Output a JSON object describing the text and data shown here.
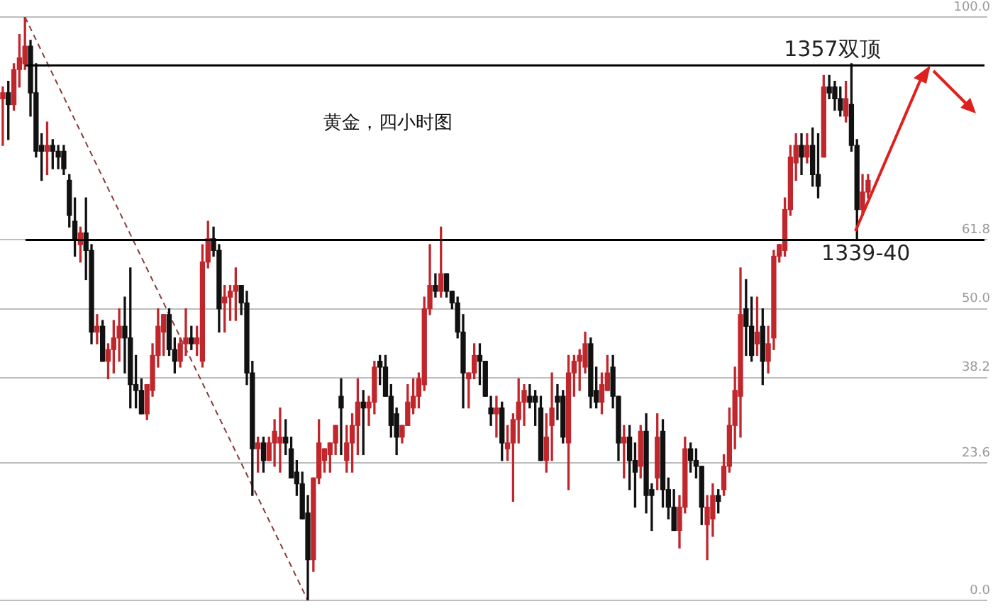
{
  "chart_data": {
    "type": "candlestick",
    "title": "黄金，四小时图",
    "categories": [
      null,
      null,
      null,
      null,
      null,
      null,
      null,
      null,
      null,
      null,
      null,
      null,
      null,
      null,
      null,
      null,
      null,
      null,
      null,
      null,
      null,
      null,
      null,
      null,
      null,
      null,
      null,
      null,
      null,
      null,
      null,
      null,
      null,
      null,
      null,
      null,
      null,
      null,
      null,
      null,
      null,
      null,
      null,
      null,
      null,
      null,
      null,
      null,
      null,
      null,
      null,
      null,
      null,
      null,
      null,
      null,
      null,
      null,
      null,
      null,
      null,
      null,
      null,
      null,
      null,
      null,
      null,
      null,
      null,
      null,
      null,
      null,
      null,
      null,
      null,
      null,
      null,
      null,
      null,
      null,
      null,
      null,
      null,
      null,
      null,
      null,
      null,
      null,
      null,
      null,
      null,
      null,
      null,
      null,
      null,
      null,
      null,
      null,
      null,
      null,
      null,
      null,
      null,
      null,
      null,
      null,
      null,
      null,
      null,
      null,
      null,
      null,
      null,
      null,
      null,
      null,
      null,
      null,
      null,
      null,
      null,
      null,
      null,
      null,
      null,
      null,
      null,
      null,
      null,
      null,
      null,
      null,
      null,
      null,
      null,
      null,
      null,
      null,
      null,
      null,
      null,
      null,
      null,
      null,
      null,
      null,
      null,
      null,
      null,
      null,
      null,
      null,
      null,
      null,
      null,
      null,
      null,
      null,
      null,
      null,
      null,
      null,
      null,
      null,
      null,
      null,
      null,
      null,
      null,
      null,
      null,
      null,
      null,
      null,
      null,
      null,
      null,
      null
    ],
    "ohlc": [
      [
        86,
        88,
        78,
        87
      ],
      [
        87,
        89,
        79,
        85
      ],
      [
        85,
        92,
        84,
        91
      ],
      [
        91,
        97,
        88,
        93
      ],
      [
        92,
        100,
        91,
        95
      ],
      [
        95,
        96,
        83,
        87
      ],
      [
        87,
        92,
        76,
        77
      ],
      [
        78,
        80,
        72,
        77
      ],
      [
        77,
        82,
        73,
        78
      ],
      [
        78,
        79,
        74,
        77
      ],
      [
        77,
        78,
        74,
        76
      ],
      [
        77,
        78,
        73,
        74
      ],
      [
        72,
        73,
        64,
        66
      ],
      [
        65,
        69,
        59,
        62
      ],
      [
        61,
        64,
        58,
        63
      ],
      [
        63,
        69,
        55,
        60
      ],
      [
        60,
        61,
        44,
        46
      ],
      [
        46,
        49,
        44,
        47
      ],
      [
        47,
        48,
        41,
        41
      ],
      [
        41,
        44,
        38,
        43
      ],
      [
        43,
        48,
        39,
        45
      ],
      [
        45,
        50,
        41,
        47
      ],
      [
        47,
        52,
        39,
        45
      ],
      [
        45,
        57,
        33,
        37
      ],
      [
        37,
        42,
        33,
        36
      ],
      [
        36,
        38,
        32,
        32
      ],
      [
        32,
        37,
        31,
        37
      ],
      [
        36,
        44,
        35,
        42
      ],
      [
        42,
        50,
        40,
        47
      ],
      [
        46,
        49,
        42,
        49
      ],
      [
        49,
        50,
        42,
        43
      ],
      [
        43,
        45,
        39,
        41
      ],
      [
        41,
        45,
        40,
        44
      ],
      [
        44,
        50,
        42,
        45
      ],
      [
        45,
        47,
        43,
        44
      ],
      [
        44,
        47,
        42,
        45
      ],
      [
        41,
        61,
        40,
        58
      ],
      [
        58,
        65,
        57,
        62
      ],
      [
        62,
        64,
        59,
        60
      ],
      [
        60,
        61,
        46,
        50
      ],
      [
        51,
        54,
        46,
        52
      ],
      [
        52,
        54,
        48,
        53
      ],
      [
        53,
        57,
        48,
        54
      ],
      [
        54,
        54,
        49,
        51
      ],
      [
        51,
        53,
        37,
        39
      ],
      [
        39,
        41,
        18,
        26
      ],
      [
        26,
        28,
        22,
        27
      ],
      [
        27,
        28,
        22,
        24
      ],
      [
        24,
        28,
        24,
        27
      ],
      [
        27,
        31,
        23,
        29
      ],
      [
        27,
        33,
        22,
        28
      ],
      [
        28,
        31,
        25,
        27
      ],
      [
        26,
        28,
        21,
        21
      ],
      [
        22,
        24,
        18,
        20
      ],
      [
        20,
        22,
        14,
        14
      ],
      [
        15,
        18,
        0,
        7
      ],
      [
        7,
        21,
        5,
        21
      ],
      [
        21,
        31,
        20,
        27
      ],
      [
        24,
        26,
        22,
        26
      ],
      [
        25,
        27,
        22,
        27
      ],
      [
        27,
        30,
        25,
        30
      ],
      [
        35,
        38,
        25,
        33
      ],
      [
        24,
        30,
        22,
        27
      ],
      [
        27,
        32,
        22,
        30
      ],
      [
        30,
        38,
        25,
        34
      ],
      [
        34,
        36,
        25,
        33
      ],
      [
        33,
        35,
        30,
        34
      ],
      [
        34,
        41,
        32,
        40
      ],
      [
        41,
        42,
        37,
        40
      ],
      [
        40,
        42,
        35,
        35
      ],
      [
        35,
        37,
        28,
        30
      ],
      [
        32,
        33,
        25,
        28
      ],
      [
        28,
        30,
        27,
        30
      ],
      [
        30,
        37,
        30,
        34
      ],
      [
        33,
        38,
        32,
        35
      ],
      [
        35,
        39,
        33,
        38
      ],
      [
        37,
        52,
        36,
        50
      ],
      [
        50,
        61,
        49,
        54
      ],
      [
        54,
        56,
        52,
        53
      ],
      [
        53,
        64,
        52,
        56
      ],
      [
        56,
        56,
        52,
        53
      ],
      [
        53,
        53,
        50,
        51
      ],
      [
        51,
        52,
        45,
        46
      ],
      [
        46,
        49,
        33,
        39
      ],
      [
        38,
        39,
        33,
        39
      ],
      [
        39,
        44,
        38,
        42
      ],
      [
        42,
        44,
        37,
        41
      ],
      [
        41,
        41,
        35,
        35
      ],
      [
        33,
        35,
        30,
        32
      ],
      [
        32,
        35,
        28,
        33
      ],
      [
        33,
        34,
        24,
        27
      ],
      [
        26,
        30,
        24,
        27
      ],
      [
        27,
        32,
        17,
        31
      ],
      [
        31,
        38,
        27,
        34
      ],
      [
        34,
        37,
        30,
        36
      ],
      [
        35,
        37,
        33,
        34
      ],
      [
        35,
        36,
        30,
        34
      ],
      [
        33,
        35,
        24,
        24
      ],
      [
        24,
        32,
        22,
        28
      ],
      [
        30,
        39,
        24,
        33
      ],
      [
        35,
        37,
        31,
        34
      ],
      [
        35,
        36,
        27,
        28
      ],
      [
        27,
        42,
        19,
        39
      ],
      [
        39,
        42,
        35,
        41
      ],
      [
        41,
        43,
        36,
        42
      ],
      [
        40,
        46,
        39,
        44
      ],
      [
        44,
        45,
        33,
        35
      ],
      [
        36,
        40,
        33,
        34
      ],
      [
        34,
        39,
        32,
        37
      ],
      [
        36,
        42,
        36,
        39
      ],
      [
        40,
        42,
        33,
        35
      ],
      [
        35,
        35,
        24,
        27
      ],
      [
        27,
        30,
        21,
        28
      ],
      [
        28,
        30,
        19,
        24
      ],
      [
        24,
        27,
        16,
        22
      ],
      [
        23,
        30,
        21,
        29
      ],
      [
        29,
        32,
        15,
        18
      ],
      [
        19,
        20,
        12,
        18
      ],
      [
        21,
        32,
        19,
        28
      ],
      [
        29,
        31,
        16,
        19
      ],
      [
        19,
        21,
        14,
        16
      ],
      [
        16,
        19,
        12,
        12
      ],
      [
        12,
        18,
        9,
        16
      ],
      [
        16,
        28,
        15,
        26
      ],
      [
        26,
        27,
        22,
        24
      ],
      [
        24,
        26,
        21,
        23
      ],
      [
        23,
        23,
        13,
        16
      ],
      [
        13,
        18,
        7,
        16
      ],
      [
        14,
        20,
        11,
        18
      ],
      [
        18,
        19,
        15,
        17
      ],
      [
        19,
        25,
        18,
        23
      ],
      [
        23,
        33,
        22,
        30
      ],
      [
        30,
        40,
        26,
        36
      ],
      [
        35,
        57,
        28,
        49
      ],
      [
        50,
        55,
        42,
        47
      ],
      [
        47,
        52,
        41,
        42
      ],
      [
        44,
        52,
        42,
        46
      ],
      [
        47,
        50,
        37,
        41
      ],
      [
        41,
        47,
        39,
        44
      ],
      [
        45,
        60,
        43,
        59
      ],
      [
        59,
        61,
        58,
        61
      ],
      [
        60,
        69,
        59,
        67
      ],
      [
        67,
        78,
        66,
        76
      ],
      [
        75,
        80,
        72,
        78
      ],
      [
        78,
        80,
        73,
        76
      ],
      [
        76,
        80,
        75,
        78
      ],
      [
        78,
        81,
        71,
        73
      ],
      [
        73,
        80,
        69,
        71
      ],
      [
        76,
        90,
        76,
        88
      ],
      [
        88,
        90,
        86,
        87
      ],
      [
        88,
        89,
        84,
        86
      ],
      [
        86,
        88,
        83,
        84
      ],
      [
        83,
        89,
        82,
        86
      ],
      [
        85,
        92,
        77,
        78
      ],
      [
        78,
        79,
        62,
        67
      ],
      [
        67,
        73,
        66,
        70
      ],
      [
        70,
        73,
        69,
        72
      ],
      null,
      null,
      null,
      null,
      null,
      null,
      null,
      null,
      null,
      null,
      null,
      null,
      null,
      null,
      null,
      null,
      null,
      null,
      null,
      null,
      null
    ],
    "colors": [
      "#c0272d",
      "#111111",
      "#c0272d",
      "#c0272d",
      "#c0272d",
      "#111111",
      "#111111",
      "#111111",
      "#c0272d",
      "#111111",
      "#111111",
      "#111111",
      "#111111",
      "#111111",
      "#c0272d",
      "#111111",
      "#111111",
      "#c0272d",
      "#111111",
      "#c0272d",
      "#c0272d",
      "#c0272d",
      "#111111",
      "#111111",
      "#111111",
      "#111111",
      "#c0272d",
      "#c0272d",
      "#c0272d",
      "#c0272d",
      "#111111",
      "#111111",
      "#c0272d",
      "#c0272d",
      "#111111",
      "#c0272d",
      "#c0272d",
      "#c0272d",
      "#111111",
      "#111111",
      "#c0272d",
      "#c0272d",
      "#c0272d",
      "#111111",
      "#111111",
      "#111111",
      "#c0272d",
      "#111111",
      "#c0272d",
      "#c0272d",
      "#c0272d",
      "#111111",
      "#111111",
      "#111111",
      "#111111",
      "#111111",
      "#c0272d",
      "#c0272d",
      "#c0272d",
      "#c0272d",
      "#c0272d",
      "#111111",
      "#c0272d",
      "#c0272d",
      "#c0272d",
      "#111111",
      "#c0272d",
      "#c0272d",
      "#111111",
      "#111111",
      "#111111",
      "#111111",
      "#c0272d",
      "#c0272d",
      "#c0272d",
      "#c0272d",
      "#c0272d",
      "#c0272d",
      "#111111",
      "#c0272d",
      "#111111",
      "#111111",
      "#111111",
      "#111111",
      "#c0272d",
      "#c0272d",
      "#111111",
      "#111111",
      "#111111",
      "#c0272d",
      "#111111",
      "#c0272d",
      "#c0272d",
      "#c0272d",
      "#c0272d",
      "#111111",
      "#111111",
      "#111111",
      "#c0272d",
      "#c0272d",
      "#111111",
      "#111111",
      "#c0272d",
      "#c0272d",
      "#c0272d",
      "#c0272d",
      "#111111",
      "#111111",
      "#c0272d",
      "#c0272d",
      "#111111",
      "#111111",
      "#c0272d",
      "#111111",
      "#111111",
      "#c0272d",
      "#111111",
      "#111111",
      "#c0272d",
      "#111111",
      "#111111",
      "#111111",
      "#c0272d",
      "#c0272d",
      "#111111",
      "#111111",
      "#111111",
      "#c0272d",
      "#c0272d",
      "#111111",
      "#c0272d",
      "#c0272d",
      "#c0272d",
      "#c0272d",
      "#111111",
      "#111111",
      "#c0272d",
      "#111111",
      "#c0272d",
      "#c0272d",
      "#c0272d",
      "#c0272d",
      "#c0272d",
      "#c0272d",
      "#111111",
      "#c0272d",
      "#111111",
      "#111111",
      "#c0272d",
      "#111111",
      "#111111",
      "#111111",
      "#c0272d",
      "#111111",
      "#111111",
      "#c0272d",
      "#c0272d",
      null,
      null,
      null,
      null,
      null,
      null,
      null,
      null,
      null,
      null,
      null,
      null,
      null,
      null,
      null,
      null,
      null,
      null,
      null,
      null,
      null
    ],
    "series": [
      {
        "type": "line",
        "values": [
          null,
          null,
          null,
          null,
          100,
          null,
          null,
          null,
          null,
          null,
          null,
          null,
          null,
          null,
          null,
          null,
          null,
          null,
          null,
          null,
          null,
          null,
          null,
          null,
          null,
          null,
          null,
          null,
          null,
          null,
          null,
          null,
          null,
          null,
          null,
          null,
          null,
          null,
          null,
          null,
          null,
          null,
          null,
          null,
          null,
          null,
          null,
          null,
          null,
          null,
          null,
          null,
          null,
          null,
          null,
          0,
          null,
          null,
          null,
          null,
          null,
          null,
          null,
          null,
          null,
          null,
          null,
          null,
          null,
          null,
          null,
          null,
          null,
          null,
          null,
          null,
          null,
          null,
          null,
          null,
          null,
          null,
          null,
          null,
          null,
          null,
          null,
          null,
          null,
          null,
          null,
          null,
          null,
          null,
          null,
          null,
          null,
          null,
          null,
          null,
          null,
          null,
          null,
          null,
          null,
          null,
          null,
          null,
          null,
          null,
          null,
          null,
          null,
          null,
          null,
          null,
          null,
          null,
          null,
          null,
          null,
          null,
          null,
          null,
          null,
          null,
          null,
          null,
          null,
          null,
          null,
          null,
          null,
          null,
          null,
          null,
          null,
          null,
          null,
          null,
          null,
          null,
          null,
          null,
          null,
          null,
          null,
          null,
          null,
          null,
          null,
          null,
          null,
          null,
          null,
          null,
          null,
          null,
          null,
          null,
          null,
          null,
          null,
          null,
          null,
          null,
          null,
          null,
          null,
          null,
          null,
          null,
          null,
          null,
          null,
          null,
          null,
          null
        ],
        "color": "#8b3a3a",
        "line_style": "dashed"
      }
    ],
    "annotations": [
      "1357双顶",
      "1339-40"
    ],
    "ylim": [
      0,
      100
    ],
    "yticks": [
      {
        "value": 0,
        "label": "0.0"
      },
      23.6,
      38.2,
      {
        "value": 50,
        "label": "50.0"
      },
      61.8,
      {
        "value": 100,
        "label": "100.0"
      }
    ],
    "grid": "y",
    "tick_labels": "y",
    "ref_lines": [
      {
        "axis": "y",
        "value": 91.7,
        "color": "#000000"
      },
      {
        "axis": "y",
        "value": 61.8,
        "color": "#000000"
      }
    ]
  }
}
